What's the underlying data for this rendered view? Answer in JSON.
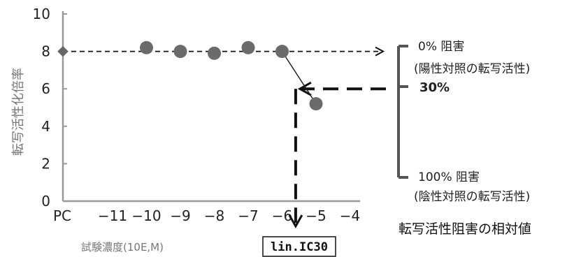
{
  "chart_data": {
    "type": "scatter",
    "title": "",
    "xlabel": "試験濃度(10E,M)",
    "ylabel": "転写活性化倍率",
    "ylim": [
      0,
      10
    ],
    "yticks": [
      "0",
      "2",
      "4",
      "6",
      "8",
      "10"
    ],
    "xticks": [
      {
        "label": "PC",
        "x": "PC"
      },
      {
        "label": "−11",
        "x": -11
      },
      {
        "label": "−10",
        "x": -10
      },
      {
        "label": "−9",
        "x": -9
      },
      {
        "label": "−8",
        "x": -8
      },
      {
        "label": "−7",
        "x": -7
      },
      {
        "label": "−6",
        "x": -6
      },
      {
        "label": "−5",
        "x": -5
      },
      {
        "label": "−4",
        "x": -4
      }
    ],
    "positive_control": {
      "x": "PC",
      "y": 8.0
    },
    "points": [
      {
        "x": -10,
        "y": 8.2
      },
      {
        "x": -9,
        "y": 8.0
      },
      {
        "x": -8,
        "y": 7.9
      },
      {
        "x": -7,
        "y": 8.2
      },
      {
        "x": -6,
        "y": 8.0
      },
      {
        "x": -5,
        "y": 5.2
      }
    ],
    "lin_ic30": {
      "x": -5.6,
      "y": 6.0,
      "label": "lin.IC30"
    },
    "annotations": {
      "zero_inhibition": "0% 阻害",
      "positive_control_note": "(陽性対照の転写活性)",
      "thirty_percent": "30%",
      "full_inhibition": "100% 阻害",
      "negative_control_note": "(陰性対照の転写活性)"
    },
    "footer": "転写活性阻害の相対値",
    "grid": false,
    "legend": "none"
  }
}
